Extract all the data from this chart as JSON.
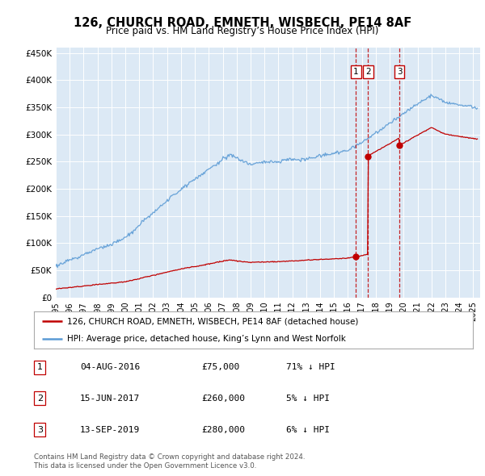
{
  "title": "126, CHURCH ROAD, EMNETH, WISBECH, PE14 8AF",
  "subtitle": "Price paid vs. HM Land Registry’s House Price Index (HPI)",
  "hpi_color": "#5b9bd5",
  "price_color": "#c00000",
  "background_color": "#ffffff",
  "plot_bg_color": "#dce9f5",
  "ylim": [
    0,
    460000
  ],
  "yticks": [
    0,
    50000,
    100000,
    150000,
    200000,
    250000,
    300000,
    350000,
    400000,
    450000
  ],
  "xlim_start": 1995.0,
  "xlim_end": 2025.5,
  "sales": [
    {
      "label": "1",
      "date_str": "04-AUG-2016",
      "year": 2016.58,
      "price": 75000,
      "pct": "71% ↓ HPI"
    },
    {
      "label": "2",
      "date_str": "15-JUN-2017",
      "year": 2017.45,
      "price": 260000,
      "pct": "5% ↓ HPI"
    },
    {
      "label": "3",
      "date_str": "13-SEP-2019",
      "year": 2019.7,
      "price": 280000,
      "pct": "6% ↓ HPI"
    }
  ],
  "legend_label_price": "126, CHURCH ROAD, EMNETH, WISBECH, PE14 8AF (detached house)",
  "legend_label_hpi": "HPI: Average price, detached house, King’s Lynn and West Norfolk",
  "footer1": "Contains HM Land Registry data © Crown copyright and database right 2024.",
  "footer2": "This data is licensed under the Open Government Licence v3.0."
}
